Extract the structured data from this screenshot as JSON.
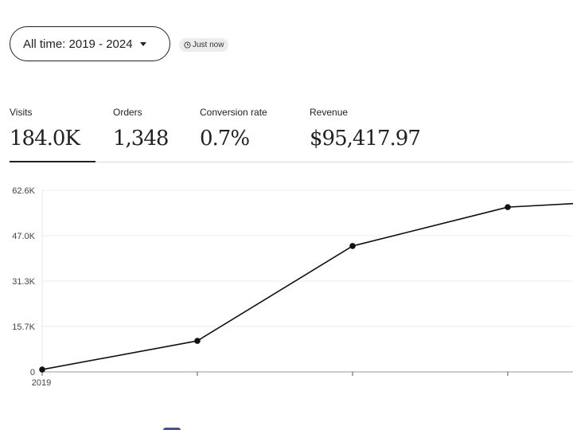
{
  "filter": {
    "range_label": "All time: 2019 - 2024",
    "updated_label": "Just now"
  },
  "metrics": [
    {
      "label": "Visits",
      "value": "184.0K",
      "active": true
    },
    {
      "label": "Orders",
      "value": "1,348",
      "active": false
    },
    {
      "label": "Conversion rate",
      "value": "0.7%",
      "active": false
    },
    {
      "label": "Revenue",
      "value": "$95,417.97",
      "active": false
    }
  ],
  "colors": {
    "line": "#111111",
    "gridline": "#eeeeee",
    "accent_peek": "#3b53b8"
  },
  "chart_data": {
    "type": "line",
    "title": "",
    "xlabel": "",
    "ylabel": "",
    "ylim": [
      0,
      62600
    ],
    "y_ticks": [
      0,
      15700,
      31300,
      47000,
      62600
    ],
    "y_tick_labels": [
      "0",
      "15.7K",
      "31.3K",
      "47.0K",
      "62.6K"
    ],
    "x_tick_labels": [
      "2019"
    ],
    "grid": true,
    "series": [
      {
        "values": [
          800,
          10700,
          43400,
          56800,
          59700
        ]
      }
    ]
  }
}
